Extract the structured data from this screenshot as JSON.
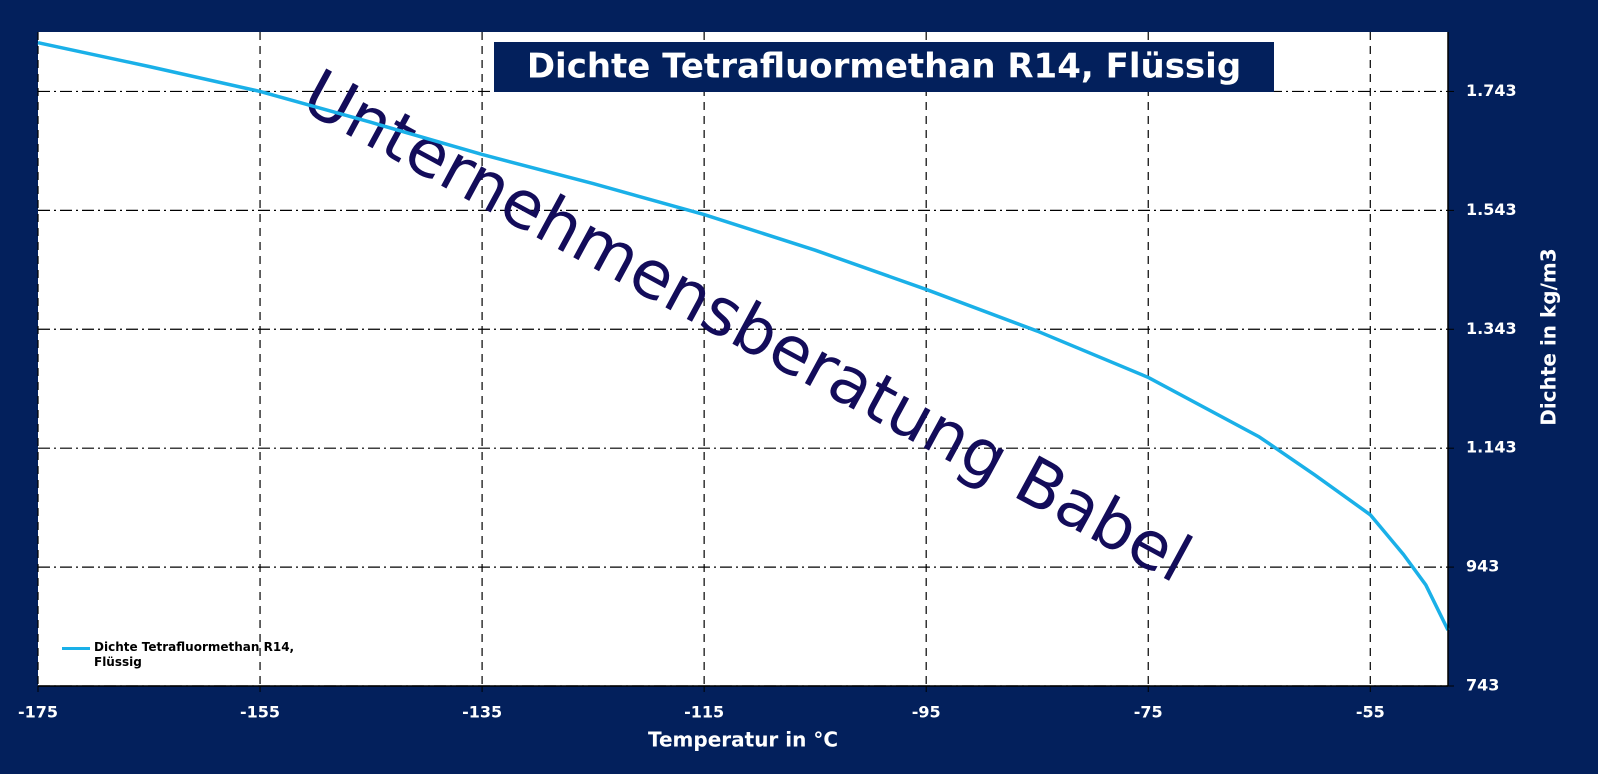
{
  "chart_data": {
    "type": "line",
    "title": "Dichte Tetrafluormethan R14, Flüssig",
    "annotation": "Unternehmensberatung Babel",
    "x_label": "Temperatur in °C",
    "y_label": "Dichte in kg/m3",
    "x": [
      -175,
      -165,
      -155,
      -145,
      -135,
      -125,
      -115,
      -105,
      -95,
      -85,
      -75,
      -65,
      -60,
      -55,
      -52,
      -50,
      -48
    ],
    "series": [
      {
        "name": "Dichte Tetrafluormethan R14, Flüssig",
        "color": "#1ab0e8",
        "values": [
          1825,
          1785,
          1743,
          1691,
          1637,
          1588,
          1536,
          1476,
          1410,
          1340,
          1262,
          1162,
          1098,
          1031,
          964,
          913,
          837
        ]
      }
    ],
    "xlim": [
      -175,
      -48
    ],
    "xticks": [
      -175,
      -155,
      -135,
      -115,
      -95,
      -75,
      -55
    ],
    "ylim": [
      743,
      1843
    ],
    "yticks": [
      743,
      943,
      {
        "value": 1143,
        "label": "1.143"
      },
      {
        "value": 1343,
        "label": "1.343"
      },
      {
        "value": 1543,
        "label": "1.543"
      },
      {
        "value": 1743,
        "label": "1.743"
      }
    ],
    "grid": true,
    "legend": "lower left"
  }
}
